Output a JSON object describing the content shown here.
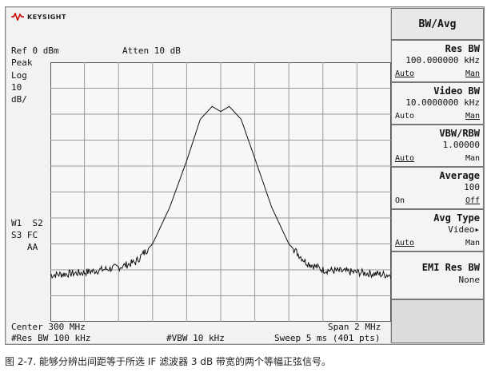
{
  "brand": "KEYSIGHT",
  "header": {
    "ref_level": "Ref 0 dBm",
    "atten": "Atten 10 dB"
  },
  "annotations": {
    "detector": "Peak",
    "scale_type": "Log",
    "scale_value": "10",
    "scale_unit": "dB/",
    "trace_w1s2": "W1  S2",
    "trace_s3fc": "S3 FC",
    "trace_aa": "AA"
  },
  "footer": {
    "center": "Center 300 MHz",
    "span": "Span 2 MHz",
    "res_bw": "#Res BW 100 kHz",
    "vbw": "#VBW 10 kHz",
    "sweep": "Sweep 5 ms (401 pts)"
  },
  "softkeys": {
    "title": "BW/Avg",
    "res_bw": {
      "label": "Res BW",
      "value": "100.000000 kHz",
      "left": "Auto",
      "right": "Man"
    },
    "video_bw": {
      "label": "Video BW",
      "value": "10.0000000 kHz",
      "left": "Auto",
      "right": "Man"
    },
    "vbw_rbw": {
      "label": "VBW/RBW",
      "value": "1.00000",
      "left": "Auto",
      "right": "Man"
    },
    "average": {
      "label": "Average",
      "value": "100",
      "left": "On",
      "right": "Off"
    },
    "avg_type": {
      "label": "Avg Type",
      "value": "Video▸",
      "left": "Auto",
      "right": "Man"
    },
    "emi_res_bw": {
      "label": "EMI Res BW",
      "value": "None"
    }
  },
  "caption": "图 2-7. 能够分辨出间距等于所选 IF 滤波器 3 dB 带宽的两个等幅正弦信号。",
  "chart_data": {
    "type": "line",
    "x_unit": "MHz",
    "xlim": [
      299,
      301
    ],
    "ylim": [
      -100,
      0
    ],
    "grid": true,
    "series": [
      {
        "x": [
          299.0,
          299.2,
          299.4,
          299.5,
          299.6,
          299.7,
          299.8,
          299.88,
          299.95,
          300.0,
          300.05,
          300.12,
          300.2,
          300.3,
          300.4,
          300.5,
          300.6,
          300.8,
          301.0
        ],
        "values": [
          -82,
          -81,
          -79,
          -77,
          -70,
          -56,
          -38,
          -22,
          -17,
          -19,
          -17,
          -22,
          -37,
          -56,
          -70,
          -77,
          -80,
          -81,
          -82
        ]
      }
    ]
  }
}
